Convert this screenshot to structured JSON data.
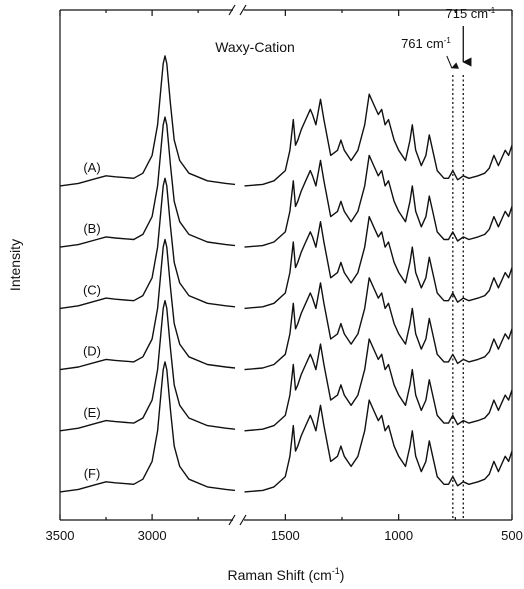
{
  "chart_data": {
    "type": "line",
    "title": "Waxy-Cation",
    "xlabel": [
      "Raman Shift (cm",
      "-1",
      ")"
    ],
    "ylabel": "Intensity",
    "xsegments": [
      [
        3500,
        2550
      ],
      [
        1700,
        500
      ]
    ],
    "xticks": [
      3500,
      3000,
      1500,
      1000,
      500
    ],
    "xminorticks": [
      3250,
      2750,
      1250,
      750
    ],
    "ylim": [
      0,
      100
    ],
    "color": "#111111",
    "annotations": [
      {
        "text": "761 cm",
        "sup": "-1",
        "x": 761
      },
      {
        "text": "715 cm",
        "sup": "-1",
        "x": 715
      }
    ],
    "x": [
      3500,
      3400,
      3300,
      3250,
      3200,
      3100,
      3050,
      3000,
      2970,
      2950,
      2940,
      2930,
      2920,
      2900,
      2880,
      2850,
      2800,
      2700,
      2600,
      2550,
      2000,
      1680,
      1600,
      1550,
      1500,
      1480,
      1465,
      1455,
      1445,
      1430,
      1410,
      1390,
      1380,
      1365,
      1345,
      1330,
      1300,
      1270,
      1255,
      1240,
      1210,
      1180,
      1150,
      1130,
      1110,
      1090,
      1075,
      1060,
      1045,
      1020,
      1000,
      970,
      950,
      940,
      925,
      900,
      880,
      865,
      850,
      830,
      800,
      780,
      761,
      740,
      715,
      690,
      650,
      620,
      600,
      580,
      560,
      545,
      530,
      515,
      500
    ],
    "series": [
      {
        "name": "(A)",
        "values": [
          65.5,
          66,
          67,
          67.5,
          67.3,
          67,
          68,
          71.5,
          77.5,
          85.5,
          89.5,
          91,
          89.5,
          81.5,
          74.5,
          70.5,
          68,
          66.5,
          66,
          65.8,
          null,
          65.5,
          65.8,
          66.5,
          68.5,
          72.5,
          78.5,
          73.5,
          74.5,
          76.5,
          78.5,
          80.5,
          79.5,
          77.5,
          82.5,
          78.5,
          71.5,
          72.5,
          74.5,
          72.5,
          70.5,
          72.5,
          77.5,
          83.5,
          81.5,
          79.5,
          80.5,
          77.5,
          78.5,
          74.5,
          72.5,
          70.5,
          74.5,
          77.5,
          72.5,
          69.5,
          71.5,
          75.5,
          72.5,
          68.5,
          67,
          67,
          68.5,
          66.7,
          67.5,
          67,
          67.5,
          68,
          69,
          71.5,
          69.5,
          71,
          72.5,
          71.5,
          73.5
        ]
      },
      {
        "name": "(B)",
        "values": [
          53.5,
          54,
          55,
          55.5,
          55.3,
          55,
          56,
          59.5,
          65.5,
          73.5,
          77.5,
          79,
          77.5,
          69.5,
          62.5,
          58.5,
          56,
          54.5,
          54,
          53.8,
          null,
          53.5,
          53.8,
          54.5,
          56.5,
          60.5,
          66.5,
          61.5,
          62.5,
          64.5,
          66.5,
          68.5,
          67.5,
          65.5,
          70.5,
          66.5,
          59.5,
          60.5,
          62.5,
          60.5,
          58.5,
          60.5,
          65.5,
          71.5,
          69.5,
          67.5,
          68.5,
          65.5,
          66.5,
          62.5,
          60.5,
          58.5,
          62.5,
          65.5,
          60.5,
          57.5,
          59.5,
          63.5,
          60.5,
          56.5,
          55,
          55,
          56.5,
          54.7,
          55.5,
          55,
          55.5,
          56,
          57,
          59.5,
          57.5,
          59,
          60.5,
          59.5,
          61.5
        ]
      },
      {
        "name": "(C)",
        "values": [
          41.5,
          42,
          43,
          43.5,
          43.3,
          43,
          44,
          47.5,
          53.5,
          61.5,
          65.5,
          67,
          65.5,
          57.5,
          50.5,
          46.5,
          44,
          42.5,
          42,
          41.8,
          null,
          41.5,
          41.8,
          42.5,
          44.5,
          48.5,
          54.5,
          49.5,
          50.5,
          52.5,
          54.5,
          56.5,
          55.5,
          53.5,
          58.5,
          54.5,
          47.5,
          48.5,
          50.5,
          48.5,
          46.5,
          48.5,
          53.5,
          59.5,
          57.5,
          55.5,
          56.5,
          53.5,
          54.5,
          50.5,
          48.5,
          46.5,
          50.5,
          53.5,
          48.5,
          45.5,
          47.5,
          51.5,
          48.5,
          44.5,
          43,
          43,
          44.5,
          42.7,
          43.5,
          43,
          43.5,
          44,
          45,
          47.5,
          45.5,
          47,
          48.5,
          47.5,
          49.5
        ]
      },
      {
        "name": "(D)",
        "values": [
          29.5,
          30,
          31,
          31.5,
          31.3,
          31,
          32,
          35.5,
          41.5,
          49.5,
          53.5,
          55,
          53.5,
          45.5,
          38.5,
          34.5,
          32,
          30.5,
          30,
          29.8,
          null,
          29.5,
          29.8,
          30.5,
          32.5,
          36.5,
          42.5,
          37.5,
          38.5,
          40.5,
          42.5,
          44.5,
          43.5,
          41.5,
          46.5,
          42.5,
          35.5,
          36.5,
          38.5,
          36.5,
          34.5,
          36.5,
          41.5,
          47.5,
          45.5,
          43.5,
          44.5,
          41.5,
          42.5,
          38.5,
          36.5,
          34.5,
          38.5,
          41.5,
          36.5,
          33.5,
          35.5,
          39.5,
          36.5,
          32.5,
          31,
          31,
          32.5,
          30.7,
          31.5,
          31,
          31.5,
          32,
          33,
          35.5,
          33.5,
          35,
          36.5,
          35.5,
          37.5
        ]
      },
      {
        "name": "(E)",
        "values": [
          17.5,
          18,
          19,
          19.5,
          19.3,
          19,
          20,
          23.5,
          29.5,
          37.5,
          41.5,
          43,
          41.5,
          33.5,
          26.5,
          22.5,
          20,
          18.5,
          18,
          17.8,
          null,
          17.5,
          17.8,
          18.5,
          20.5,
          24.5,
          30.5,
          25.5,
          26.5,
          28.5,
          30.5,
          32.5,
          31.5,
          29.5,
          34.5,
          30.5,
          23.5,
          24.5,
          26.5,
          24.5,
          22.5,
          24.5,
          29.5,
          35.5,
          33.5,
          31.5,
          32.5,
          29.5,
          30.5,
          26.5,
          24.5,
          22.5,
          26.5,
          29.5,
          24.5,
          21.5,
          23.5,
          27.5,
          24.5,
          20.5,
          19,
          19,
          20.5,
          18.7,
          19.5,
          19,
          19.5,
          20,
          21,
          23.5,
          21.5,
          23,
          24.5,
          23.5,
          25.5
        ]
      },
      {
        "name": "(F)",
        "values": [
          5.5,
          6,
          7,
          7.5,
          7.3,
          7,
          8,
          11.5,
          17.5,
          25.5,
          29.5,
          31,
          29.5,
          21.5,
          14.5,
          10.5,
          8,
          6.5,
          6,
          5.8,
          null,
          5.5,
          5.8,
          6.5,
          8.5,
          12.5,
          18.5,
          13.5,
          14.5,
          16.5,
          18.5,
          20.5,
          19.5,
          17.5,
          22.5,
          18.5,
          11.5,
          12.5,
          14.5,
          12.5,
          10.5,
          12.5,
          17.5,
          23.5,
          21.5,
          19.5,
          20.5,
          17.5,
          18.5,
          14.5,
          12.5,
          10.5,
          14.5,
          17.5,
          12.5,
          9.5,
          11.5,
          15.5,
          12.5,
          8.5,
          7,
          7,
          8.5,
          6.7,
          7.5,
          7,
          7.5,
          8,
          9,
          11.5,
          9.5,
          11,
          12.5,
          11.5,
          13.5
        ]
      }
    ]
  }
}
